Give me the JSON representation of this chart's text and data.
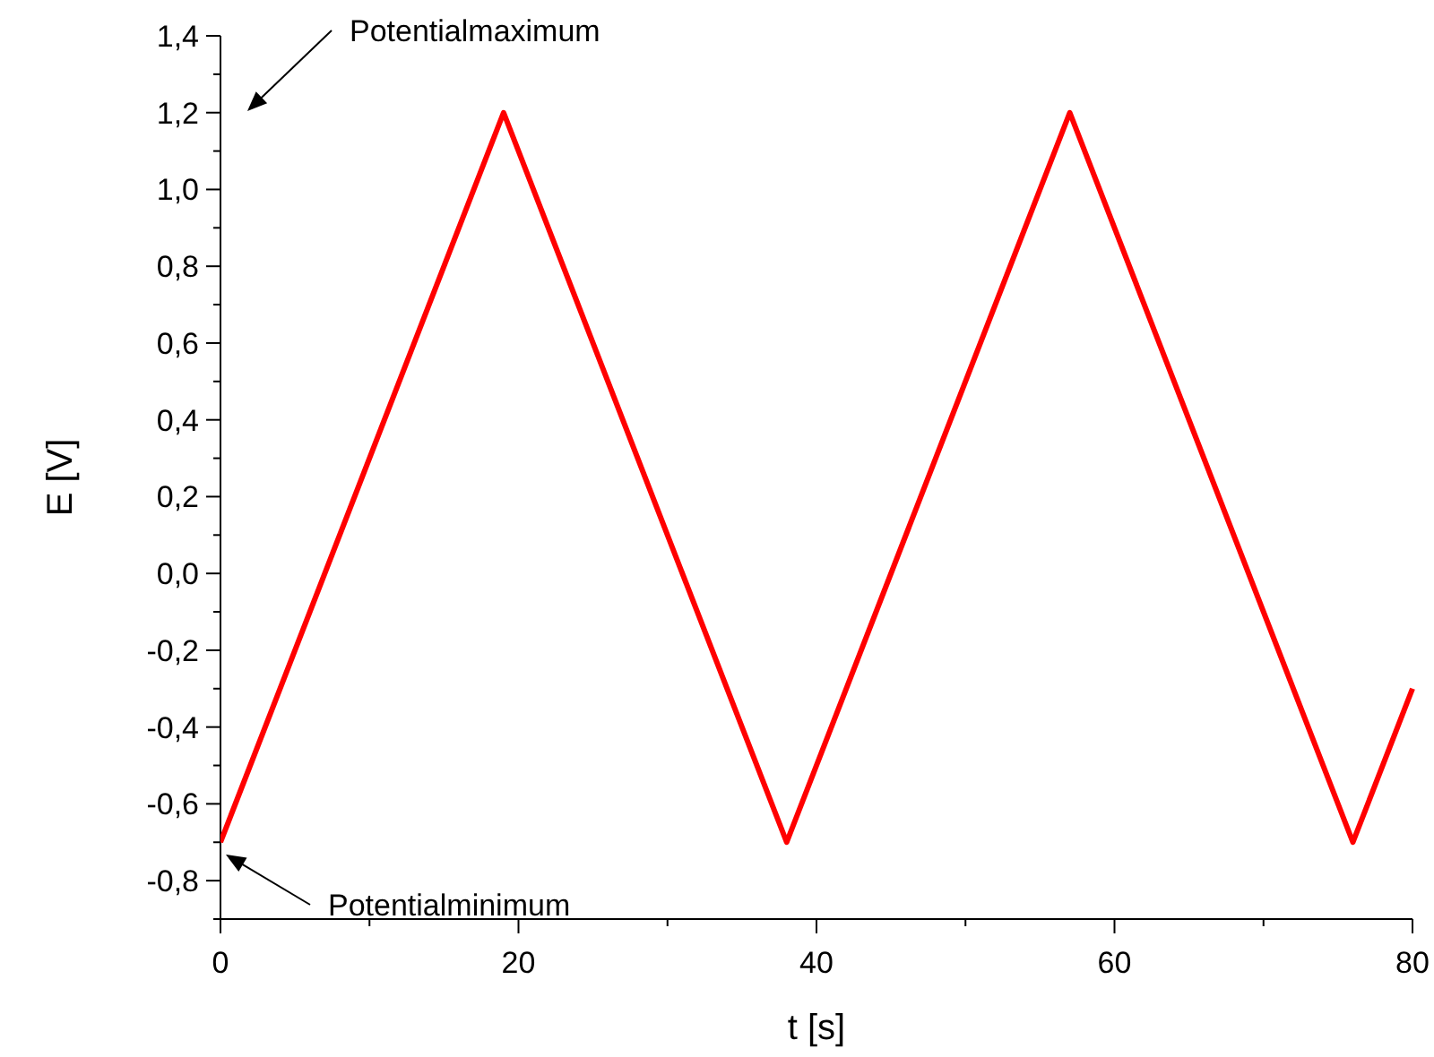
{
  "chart_data": {
    "type": "line",
    "xlabel": "t [s]",
    "ylabel": "E [V]",
    "x": [
      0,
      19,
      38,
      57,
      76,
      80
    ],
    "series": [
      {
        "color": "#ff0000",
        "values": [
          -0.7,
          1.2,
          -0.7,
          1.2,
          -0.7,
          -0.3
        ]
      }
    ],
    "xlim": [
      0,
      80
    ],
    "xticks": [
      0,
      20,
      40,
      60,
      80
    ],
    "ylim": [
      -0.9,
      1.4
    ],
    "yticks": [
      {
        "value": -0.8,
        "label": "-0,8"
      },
      {
        "value": -0.6,
        "label": "-0,6"
      },
      {
        "value": -0.4,
        "label": "-0,4"
      },
      {
        "value": -0.2,
        "label": "-0,2"
      },
      {
        "value": 0,
        "label": "0,0"
      },
      {
        "value": 0.2,
        "label": "0,2"
      },
      {
        "value": 0.4,
        "label": "0,4"
      },
      {
        "value": 0.6,
        "label": "0,6"
      },
      {
        "value": 0.8,
        "label": "0,8"
      },
      {
        "value": 1.0,
        "label": "1,0"
      },
      {
        "value": 1.2,
        "label": "1,2"
      },
      {
        "value": 1.4,
        "label": "1,4"
      }
    ],
    "grid": false,
    "marker": "none",
    "line_style": "solid",
    "annotations": [
      "Potentialmaximum",
      "Potentialminimum"
    ]
  }
}
